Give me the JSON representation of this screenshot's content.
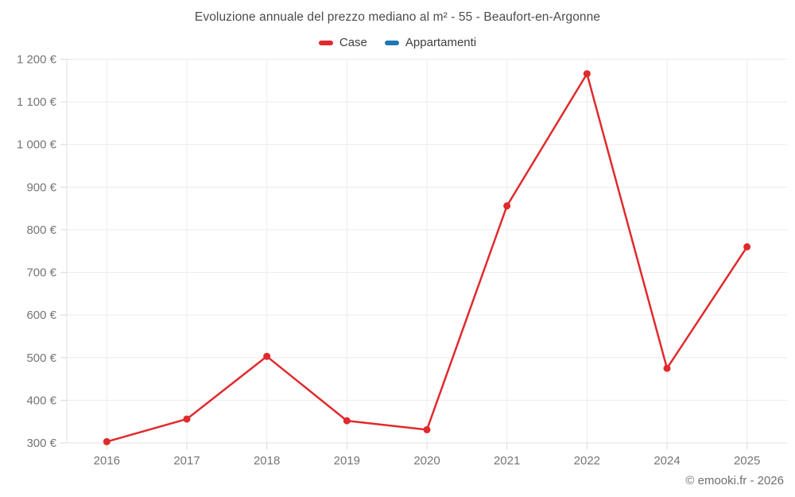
{
  "chart_data": {
    "type": "line",
    "title": "Evoluzione annuale del prezzo mediano al m² - 55 - Beaufort-en-Argonne",
    "xlabel": "",
    "ylabel": "",
    "categories": [
      "2016",
      "2017",
      "2018",
      "2019",
      "2020",
      "2021",
      "2022",
      "2024",
      "2025"
    ],
    "series": [
      {
        "name": "Case",
        "color": "#e02a2c",
        "values": [
          303,
          356,
          503,
          352,
          331,
          856,
          1166,
          475,
          760
        ]
      },
      {
        "name": "Appartamenti",
        "color": "#1f78b4",
        "values": []
      }
    ],
    "ylim": [
      300,
      1200
    ],
    "ytick_values": [
      300,
      400,
      500,
      600,
      700,
      800,
      900,
      1000,
      1100,
      1200
    ],
    "ytick_labels": [
      "300 €",
      "400 €",
      "500 €",
      "600 €",
      "700 €",
      "800 €",
      "900 €",
      "1 000 €",
      "1 100 €",
      "1 200 €"
    ],
    "grid": true,
    "legend_position": "top",
    "colors": {
      "grid_line": "#ececec",
      "axis_line": "#e0e0e0",
      "tick_mark": "#d9d9d9",
      "tick_text": "#757575",
      "title_text": "#4b4b4b"
    }
  },
  "footer": {
    "copyright": "© emooki.fr - 2026"
  }
}
